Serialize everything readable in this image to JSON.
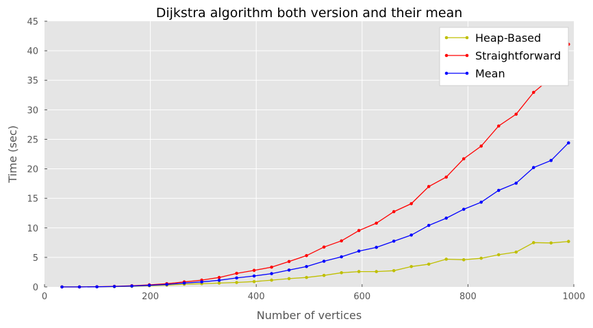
{
  "chart_data": {
    "type": "line",
    "title": "Dijkstra algorithm both version and their mean",
    "xlabel": "Number of vertices",
    "ylabel": "Time (sec)",
    "xlim": [
      0,
      1000
    ],
    "ylim": [
      0,
      45
    ],
    "xticks": [
      0,
      200,
      400,
      600,
      800,
      1000
    ],
    "yticks": [
      0,
      5,
      10,
      15,
      20,
      25,
      30,
      35,
      40,
      45
    ],
    "grid": true,
    "legend_position": "top-right",
    "x": [
      33,
      66,
      99,
      132,
      165,
      198,
      231,
      264,
      297,
      330,
      363,
      396,
      429,
      462,
      495,
      528,
      561,
      594,
      627,
      660,
      693,
      726,
      759,
      792,
      825,
      858,
      891,
      924,
      957,
      990
    ],
    "series": [
      {
        "name": "Heap-Based",
        "color": "#bfbf00",
        "values": [
          0.0,
          0.0,
          0.02,
          0.05,
          0.1,
          0.2,
          0.3,
          0.45,
          0.55,
          0.65,
          0.75,
          0.9,
          1.15,
          1.4,
          1.6,
          1.95,
          2.4,
          2.6,
          2.6,
          2.75,
          3.45,
          3.85,
          4.7,
          4.6,
          4.85,
          5.45,
          5.9,
          7.5,
          7.45,
          7.7
        ]
      },
      {
        "name": "Straightforward",
        "color": "#ff0000",
        "values": [
          0.0,
          0.0,
          0.03,
          0.1,
          0.2,
          0.35,
          0.55,
          0.85,
          1.15,
          1.6,
          2.3,
          2.8,
          3.35,
          4.3,
          5.3,
          6.75,
          7.8,
          9.55,
          10.8,
          12.75,
          14.1,
          17.0,
          18.6,
          21.7,
          23.85,
          27.25,
          29.25,
          32.95,
          35.4,
          41.1
        ]
      },
      {
        "name": "Mean",
        "color": "#0000ff",
        "values": [
          0.0,
          0.0,
          0.02,
          0.07,
          0.15,
          0.27,
          0.42,
          0.65,
          0.85,
          1.12,
          1.52,
          1.85,
          2.25,
          2.85,
          3.45,
          4.35,
          5.1,
          6.07,
          6.7,
          7.75,
          8.78,
          10.42,
          11.65,
          13.15,
          14.35,
          16.35,
          17.57,
          20.22,
          21.42,
          24.4
        ]
      }
    ]
  }
}
